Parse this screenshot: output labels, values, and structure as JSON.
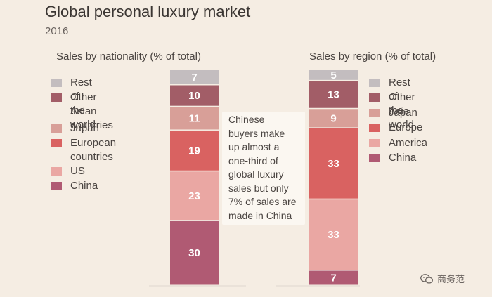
{
  "header": {
    "title": "Global personal luxury market",
    "subtitle": "2016"
  },
  "colors": {
    "rest_of_world": "#c3bdbf",
    "other_asian": "#a25d67",
    "japan": "#d89f98",
    "europe": "#d96261",
    "us": "#eaa7a3",
    "china": "#b05a73",
    "axis": "#9c9592"
  },
  "chart_data": [
    {
      "type": "bar",
      "stacked": true,
      "title": "Sales by nationality (% of total)",
      "series": [
        {
          "name": "China",
          "values": [
            30
          ],
          "color": "#b05a73"
        },
        {
          "name": "US",
          "values": [
            23
          ],
          "color": "#eaa7a3"
        },
        {
          "name": "European\ncountries",
          "values": [
            19
          ],
          "color": "#d96261"
        },
        {
          "name": "Japan",
          "values": [
            11
          ],
          "color": "#d89f98"
        },
        {
          "name": "Other Asian\ncountries",
          "values": [
            10
          ],
          "color": "#a25d67"
        },
        {
          "name": "Rest of the world",
          "values": [
            7
          ],
          "color": "#c3bdbf"
        }
      ]
    },
    {
      "type": "bar",
      "stacked": true,
      "title": "Sales by region (% of total)",
      "series": [
        {
          "name": "China",
          "values": [
            7
          ],
          "color": "#b05a73"
        },
        {
          "name": "America",
          "values": [
            33
          ],
          "color": "#eaa7a3"
        },
        {
          "name": "Europe",
          "values": [
            33
          ],
          "color": "#d96261"
        },
        {
          "name": "Japan",
          "values": [
            9
          ],
          "color": "#d89f98"
        },
        {
          "name": "Other Asia",
          "values": [
            13
          ],
          "color": "#a25d67"
        },
        {
          "name": "Rest of the world",
          "values": [
            5
          ],
          "color": "#c3bdbf"
        }
      ]
    }
  ],
  "annotation": "Chinese\nbuyers make\nup almost a\none-third of\nglobal luxury\nsales but only\n7% of sales are\nmade in China",
  "watermark": {
    "text": "商务范",
    "icon": "wechat-icon"
  }
}
